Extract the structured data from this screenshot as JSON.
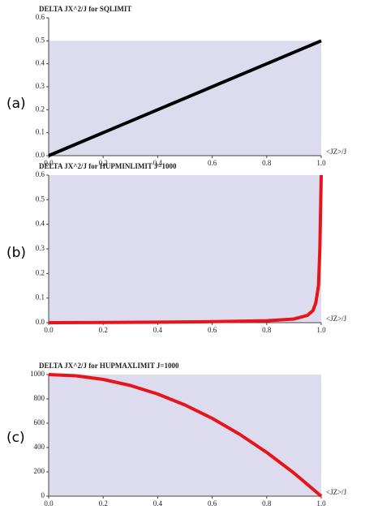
{
  "chart_data": [
    {
      "type": "line",
      "panel_label": "(a)",
      "title": "DELTA JX^2/J for SQLIMIT",
      "x_label": "<JZ>/J",
      "x": [
        0,
        1
      ],
      "values": [
        0,
        0.5
      ],
      "color": "#000000",
      "shade": "#dcdcee",
      "xlim": [
        0,
        1
      ],
      "xticks": [
        {
          "value": 0,
          "label": "0.0"
        },
        {
          "value": 0.2,
          "label": "0.2"
        },
        {
          "value": 0.4,
          "label": "0.4"
        },
        {
          "value": 0.6,
          "label": "0.6"
        },
        {
          "value": 0.8,
          "label": "0.8"
        },
        {
          "value": 1,
          "label": "1.0"
        }
      ],
      "ylim": [
        0,
        0.6
      ],
      "yticks": [
        {
          "value": 0,
          "label": "0.0"
        },
        0.1,
        0.2,
        0.3,
        0.4,
        0.5,
        0.6
      ]
    },
    {
      "type": "line",
      "panel_label": "(b)",
      "title": "DELTA JX^2/J for HUPMINLIMIT J=1000",
      "x_label": "<JZ>/J",
      "x": [
        0,
        0.2,
        0.4,
        0.6,
        0.8,
        0.9,
        0.95,
        0.97,
        0.98,
        0.99,
        0.995,
        1.0
      ],
      "values": [
        0,
        0.001,
        0.002,
        0.004,
        0.008,
        0.015,
        0.03,
        0.05,
        0.08,
        0.15,
        0.3,
        0.6
      ],
      "color": "#e8141a",
      "shade": "#dcdcee",
      "xlim": [
        0,
        1
      ],
      "xticks": [
        {
          "value": 0,
          "label": "0.0"
        },
        {
          "value": 0.2,
          "label": "0.2"
        },
        {
          "value": 0.4,
          "label": "0.4"
        },
        {
          "value": 0.6,
          "label": "0.6"
        },
        {
          "value": 0.8,
          "label": "0.8"
        },
        {
          "value": 1,
          "label": "1.0"
        }
      ],
      "ylim": [
        0,
        0.6
      ],
      "yticks": [
        {
          "value": 0,
          "label": "0.0"
        },
        0.1,
        0.2,
        0.3,
        0.4,
        0.5,
        0.6
      ]
    },
    {
      "type": "line",
      "panel_label": "(c)",
      "title": "DELTA JX^2/J for HUPMAXLIMIT J=1000",
      "x_label": "<JZ>/J",
      "x": [
        0,
        0.1,
        0.2,
        0.3,
        0.4,
        0.5,
        0.6,
        0.7,
        0.8,
        0.9,
        1.0
      ],
      "values": [
        1000,
        990,
        960,
        910,
        840,
        750,
        640,
        510,
        360,
        190,
        0
      ],
      "color": "#e8141a",
      "shade": "#dcdcee",
      "xlim": [
        0,
        1
      ],
      "xticks": [
        {
          "value": 0,
          "label": "0.0"
        },
        {
          "value": 0.2,
          "label": "0.2"
        },
        {
          "value": 0.4,
          "label": "0.4"
        },
        {
          "value": 0.6,
          "label": "0.6"
        },
        {
          "value": 0.8,
          "label": "0.8"
        },
        {
          "value": 1,
          "label": "1.0"
        }
      ],
      "ylim": [
        0,
        1000
      ],
      "yticks": [
        0,
        200,
        400,
        600,
        800,
        1000
      ]
    }
  ]
}
